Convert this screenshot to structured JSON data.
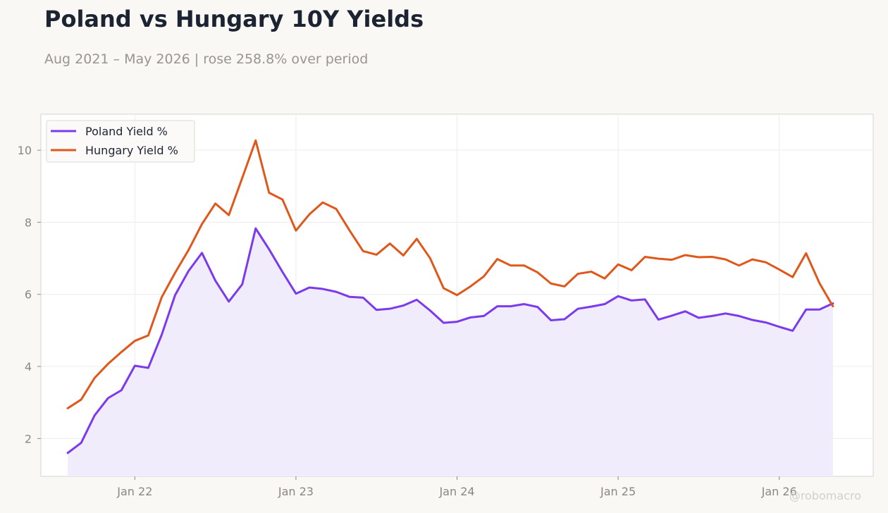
{
  "header": {
    "title": "Poland vs Hungary 10Y Yields",
    "subtitle": "Aug 2021 – May 2026 | rose 258.8% over period"
  },
  "watermark": "@robomacro",
  "colors": {
    "poland": "#7c3aed",
    "hungary": "#e0571a",
    "poland_fill": "#f1ecfb",
    "grid": "#ececec",
    "plot_border": "#d6d3cf"
  },
  "chart_data": {
    "type": "line",
    "title": "Poland vs Hungary 10Y Yields",
    "xlabel": "",
    "ylabel": "",
    "x": [
      "2021-08",
      "2021-09",
      "2021-10",
      "2021-11",
      "2021-12",
      "2022-01",
      "2022-02",
      "2022-03",
      "2022-04",
      "2022-05",
      "2022-06",
      "2022-07",
      "2022-08",
      "2022-09",
      "2022-10",
      "2022-11",
      "2022-12",
      "2023-01",
      "2023-02",
      "2023-03",
      "2023-04",
      "2023-05",
      "2023-06",
      "2023-07",
      "2023-08",
      "2023-09",
      "2023-10",
      "2023-11",
      "2023-12",
      "2024-01",
      "2024-02",
      "2024-03",
      "2024-04",
      "2024-05",
      "2024-06",
      "2024-07",
      "2024-08",
      "2024-09",
      "2024-10",
      "2024-11",
      "2024-12",
      "2025-01",
      "2025-02",
      "2025-03",
      "2025-04",
      "2025-05",
      "2025-06",
      "2025-07",
      "2025-08",
      "2025-09",
      "2025-10",
      "2025-11",
      "2025-12",
      "2026-01",
      "2026-02",
      "2026-03",
      "2026-04",
      "2026-05"
    ],
    "series": [
      {
        "name": "Poland Yield %",
        "values": [
          1.6,
          1.88,
          2.64,
          3.12,
          3.34,
          4.02,
          3.96,
          4.88,
          5.98,
          6.65,
          7.15,
          6.38,
          5.8,
          6.28,
          7.83,
          7.25,
          6.62,
          6.02,
          6.19,
          6.15,
          6.07,
          5.93,
          5.91,
          5.57,
          5.6,
          5.69,
          5.85,
          5.55,
          5.21,
          5.24,
          5.36,
          5.4,
          5.67,
          5.67,
          5.73,
          5.65,
          5.28,
          5.31,
          5.6,
          5.66,
          5.73,
          5.95,
          5.83,
          5.86,
          5.3,
          5.41,
          5.53,
          5.35,
          5.4,
          5.47,
          5.4,
          5.29,
          5.22,
          5.1,
          4.99,
          5.58,
          5.58,
          5.75
        ]
      },
      {
        "name": "Hungary Yield %",
        "values": [
          2.84,
          3.08,
          3.68,
          4.07,
          4.4,
          4.71,
          4.86,
          5.92,
          6.6,
          7.23,
          7.95,
          8.52,
          8.2,
          9.23,
          10.27,
          8.82,
          8.63,
          7.77,
          8.22,
          8.55,
          8.37,
          7.77,
          7.2,
          7.1,
          7.41,
          7.08,
          7.54,
          7.0,
          6.17,
          5.98,
          6.22,
          6.5,
          6.98,
          6.8,
          6.8,
          6.61,
          6.3,
          6.22,
          6.57,
          6.63,
          6.44,
          6.83,
          6.67,
          7.04,
          6.99,
          6.96,
          7.09,
          7.03,
          7.04,
          6.97,
          6.8,
          6.97,
          6.89,
          6.69,
          6.48,
          7.14,
          6.31,
          5.67
        ]
      }
    ],
    "ylim": [
      0.95,
      11.0
    ],
    "yticks": [
      2,
      4,
      6,
      8,
      10
    ],
    "xticks": [
      {
        "date": "2022-01",
        "label": "Jan 22"
      },
      {
        "date": "2023-01",
        "label": "Jan 23"
      },
      {
        "date": "2024-01",
        "label": "Jan 24"
      },
      {
        "date": "2025-01",
        "label": "Jan 25"
      },
      {
        "date": "2026-01",
        "label": "Jan 26"
      }
    ],
    "xlim": [
      "2021-06",
      "2026-08"
    ],
    "grid": true,
    "legend_position": "top-left",
    "fill_under": "Poland Yield %"
  }
}
